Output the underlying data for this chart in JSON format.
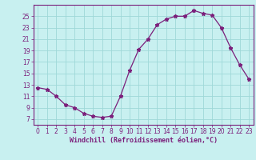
{
  "x": [
    0,
    1,
    2,
    3,
    4,
    5,
    6,
    7,
    8,
    9,
    10,
    11,
    12,
    13,
    14,
    15,
    16,
    17,
    18,
    19,
    20,
    21,
    22,
    23
  ],
  "y": [
    12.5,
    12.2,
    11.0,
    9.5,
    9.0,
    8.0,
    7.5,
    7.3,
    7.5,
    11.0,
    15.5,
    19.2,
    21.0,
    23.5,
    24.5,
    25.0,
    25.0,
    26.0,
    25.5,
    25.2,
    23.0,
    19.5,
    16.5,
    14.0
  ],
  "line_color": "#7B1F7B",
  "marker": "*",
  "bg_color": "#c8f0f0",
  "grid_color": "#9fd8d8",
  "xlabel": "Windchill (Refroidissement éolien,°C)",
  "xlabel_color": "#7B1F7B",
  "tick_color": "#7B1F7B",
  "spine_color": "#7B1F7B",
  "ylim": [
    6,
    27
  ],
  "yticks": [
    7,
    9,
    11,
    13,
    15,
    17,
    19,
    21,
    23,
    25
  ],
  "xticks": [
    0,
    1,
    2,
    3,
    4,
    5,
    6,
    7,
    8,
    9,
    10,
    11,
    12,
    13,
    14,
    15,
    16,
    17,
    18,
    19,
    20,
    21,
    22,
    23
  ],
  "tick_fontsize": 5.5,
  "xlabel_fontsize": 6.0
}
